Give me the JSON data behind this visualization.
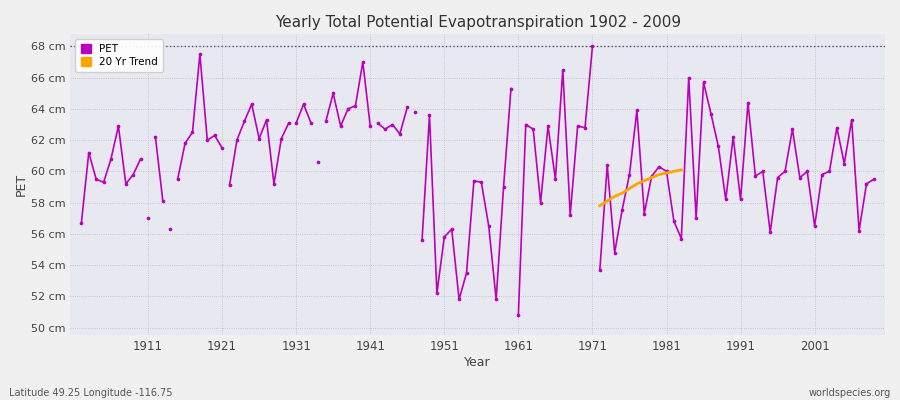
{
  "title": "Yearly Total Potential Evapotranspiration 1902 - 2009",
  "xlabel": "Year",
  "ylabel": "PET",
  "lat_lon_label": "Latitude 49.25 Longitude -116.75",
  "source_label": "worldspecies.org",
  "ylim": [
    49.5,
    68.8
  ],
  "yticks": [
    50,
    52,
    54,
    56,
    58,
    60,
    62,
    64,
    66,
    68
  ],
  "ytick_labels": [
    "50 cm",
    "52 cm",
    "54 cm",
    "56 cm",
    "58 cm",
    "60 cm",
    "62 cm",
    "64 cm",
    "66 cm",
    "68 cm"
  ],
  "xlim": [
    1900.5,
    2010.5
  ],
  "xticks": [
    1911,
    1921,
    1931,
    1941,
    1951,
    1961,
    1971,
    1981,
    1991,
    2001
  ],
  "fig_bg_color": "#f0f0f0",
  "plot_bg_color": "#e8e8f0",
  "pet_color": "#bb00bb",
  "trend_color": "#ffa500",
  "pet_segments": [
    {
      "years": [
        1902,
        1903,
        1904,
        1905,
        1906,
        1907,
        1908,
        1909,
        1910
      ],
      "values": [
        56.7,
        61.2,
        59.5,
        59.3,
        60.8,
        62.9,
        59.2,
        59.8,
        60.8
      ]
    },
    {
      "years": [
        1911
      ],
      "values": [
        57.0
      ]
    },
    {
      "years": [
        1912,
        1913
      ],
      "values": [
        62.2,
        58.1
      ]
    },
    {
      "years": [
        1914
      ],
      "values": [
        56.3
      ]
    },
    {
      "years": [
        1915,
        1916,
        1917,
        1918,
        1919,
        1920,
        1921
      ],
      "values": [
        59.5,
        61.8,
        62.5,
        67.5,
        62.0,
        62.3,
        61.5
      ]
    },
    {
      "years": [
        1922,
        1923,
        1924,
        1925,
        1926,
        1927,
        1928,
        1929,
        1930
      ],
      "values": [
        59.1,
        62.0,
        63.2,
        64.3,
        62.1,
        63.3,
        59.2,
        62.1,
        63.1
      ]
    },
    {
      "years": [
        1931,
        1932,
        1933
      ],
      "values": [
        63.1,
        64.3,
        63.1
      ]
    },
    {
      "years": [
        1934
      ],
      "values": [
        60.6
      ]
    },
    {
      "years": [
        1935,
        1936,
        1937,
        1938,
        1939,
        1940,
        1941
      ],
      "values": [
        63.2,
        65.0,
        62.9,
        64.0,
        64.2,
        67.0,
        62.9
      ]
    },
    {
      "years": [
        1942,
        1943,
        1944,
        1945,
        1946
      ],
      "values": [
        63.1,
        62.7,
        63.0,
        62.4,
        64.1
      ]
    },
    {
      "years": [
        1947
      ],
      "values": [
        63.8
      ]
    },
    {
      "years": [
        1948,
        1949,
        1950,
        1951,
        1952,
        1953,
        1954,
        1955,
        1956,
        1957,
        1958,
        1959,
        1960
      ],
      "values": [
        55.6,
        63.6,
        52.2,
        55.8,
        56.3,
        51.8,
        53.5,
        59.4,
        59.3,
        56.5,
        51.8,
        59.0,
        65.3
      ]
    },
    {
      "years": [
        1961,
        1962,
        1963,
        1964,
        1965,
        1966,
        1967,
        1968,
        1969,
        1970,
        1971
      ],
      "values": [
        50.8,
        63.0,
        62.7,
        58.0,
        62.9,
        59.5,
        66.5,
        57.2,
        62.9,
        62.8,
        68.0
      ]
    },
    {
      "years": [
        1972,
        1973,
        1974,
        1975,
        1976,
        1977,
        1978,
        1979,
        1980,
        1981,
        1982,
        1983,
        1984,
        1985,
        1986,
        1987,
        1988,
        1989,
        1990,
        1991,
        1992,
        1993,
        1994,
        1995,
        1996,
        1997,
        1998,
        1999,
        2000,
        2001,
        2002,
        2003,
        2004,
        2005,
        2006,
        2007,
        2008,
        2009
      ],
      "values": [
        53.7,
        60.4,
        54.8,
        57.5,
        59.8,
        63.9,
        57.3,
        59.7,
        60.3,
        60.0,
        56.8,
        55.7,
        66.0,
        57.0,
        65.7,
        63.7,
        61.6,
        58.2,
        62.2,
        58.2,
        64.4,
        59.7,
        60.0,
        56.1,
        59.6,
        60.0,
        62.7,
        59.6,
        60.0,
        56.5,
        59.8,
        60.0,
        62.8,
        60.5,
        63.3,
        56.2,
        59.2,
        59.5
      ]
    }
  ],
  "trend_years": [
    1972,
    1973,
    1974,
    1975,
    1976,
    1977,
    1978,
    1979,
    1980,
    1981,
    1982,
    1983
  ],
  "trend_values": [
    57.8,
    58.1,
    58.4,
    58.6,
    58.9,
    59.2,
    59.4,
    59.6,
    59.8,
    59.9,
    60.0,
    60.1
  ]
}
